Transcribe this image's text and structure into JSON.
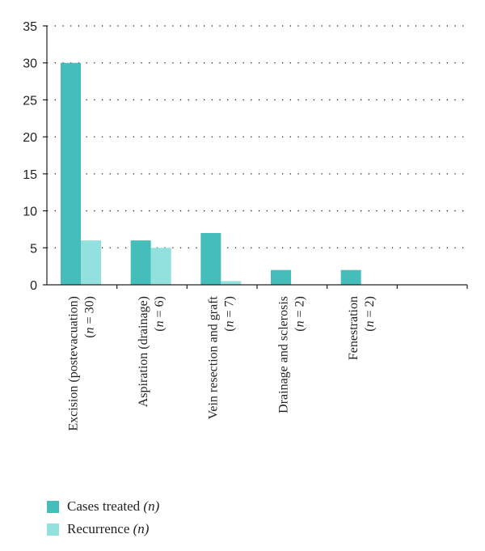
{
  "chart_data": {
    "type": "bar",
    "categories": [
      [
        "Excision (postevacuation)",
        "(n = 30)"
      ],
      [
        "Aspiration (drainage)",
        "(n = 6)"
      ],
      [
        "Vein resection and graft",
        "(n = 7)"
      ],
      [
        "Drainage and sclerosis",
        "(n = 2)"
      ],
      [
        "Fenestration",
        "(n = 2)"
      ],
      [
        "",
        ""
      ]
    ],
    "series": [
      {
        "name": "Cases treated",
        "symbol": "(n)",
        "color": "#45bdbb",
        "values": [
          30,
          6,
          7,
          2,
          2,
          null
        ]
      },
      {
        "name": "Recurrence",
        "symbol": "(n)",
        "color": "#93e1df",
        "values": [
          6,
          5,
          0.5,
          0,
          0,
          null
        ]
      }
    ],
    "yticks": [
      0,
      5,
      10,
      15,
      20,
      25,
      30,
      35
    ],
    "ylim": [
      0,
      35
    ],
    "grid": true,
    "legend": "bottom-left",
    "title": "",
    "xlabel": "",
    "ylabel": ""
  }
}
